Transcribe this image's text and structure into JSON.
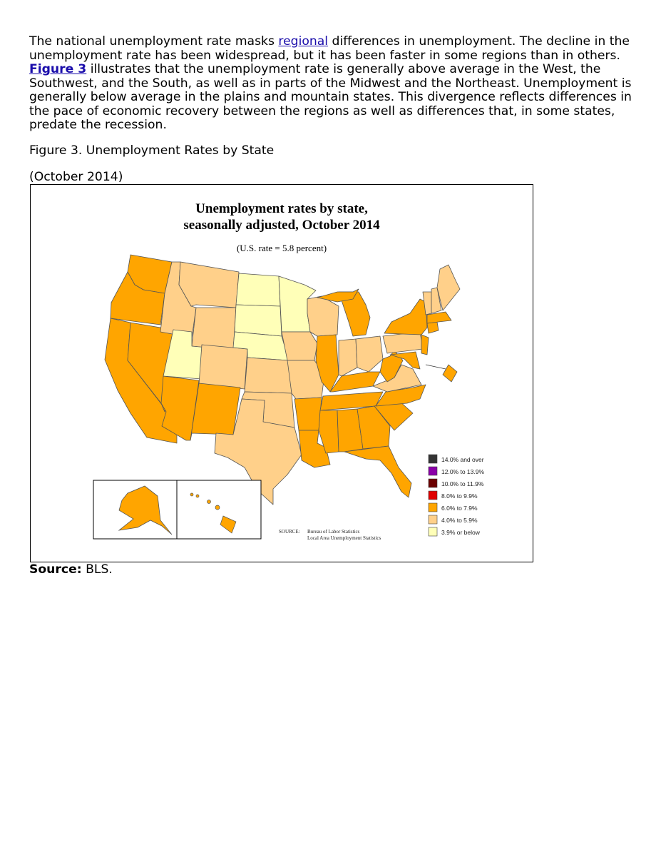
{
  "article": {
    "text_1": "The national unemployment rate masks ",
    "link_regional": "regional",
    "text_2": " differences in unemployment. The decline in the unemployment rate has been widespread, but it has been faster in some regions than in others. ",
    "link_figure": "Figure 3",
    "text_3": " illustrates that the unemployment rate is generally above average in the West, the Southwest, and the South, as well as in parts of the Midwest and the Northeast. Unemployment is generally below average in the plains and mountain states. This divergence reflects differences in the pace of economic recovery between the regions as well as differences that, in some states, predate the recession."
  },
  "figure": {
    "caption": "Figure 3. Unemployment Rates by State",
    "date": "(October 2014)",
    "source_label": "Source:",
    "source_text": " BLS."
  },
  "map": {
    "title_line1": "Unemployment rates by state,",
    "title_line2": "seasonally adjusted, October 2014",
    "subtitle": "(U.S. rate = 5.8 percent)",
    "source_label": "SOURCE:",
    "source_line1": "Bureau of Labor Statistics",
    "source_line2": "Local Area Unemployment Statistics",
    "legend": [
      {
        "label": "14.0% and over",
        "color": "#333333"
      },
      {
        "label": "12.0% to 13.9%",
        "color": "#8a00a8"
      },
      {
        "label": "10.0% to 11.9%",
        "color": "#6b0000"
      },
      {
        "label": "8.0% to 9.9%",
        "color": "#e00000"
      },
      {
        "label": "6.0% to 7.9%",
        "color": "#ffa500"
      },
      {
        "label": "4.0% to 5.9%",
        "color": "#ffd08a"
      },
      {
        "label": "3.9% or below",
        "color": "#ffffb8"
      }
    ]
  }
}
